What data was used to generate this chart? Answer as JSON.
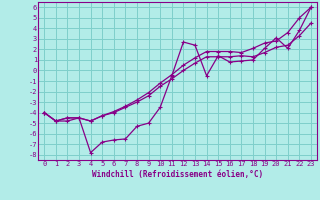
{
  "title": "",
  "xlabel": "Windchill (Refroidissement éolien,°C)",
  "bg_color": "#b2ece8",
  "grid_color": "#7ecfcb",
  "line_color": "#880088",
  "spine_color": "#880088",
  "xlim": [
    -0.5,
    23.5
  ],
  "ylim": [
    -8.5,
    6.5
  ],
  "xticks": [
    0,
    1,
    2,
    3,
    4,
    5,
    6,
    7,
    8,
    9,
    10,
    11,
    12,
    13,
    14,
    15,
    16,
    17,
    18,
    19,
    20,
    21,
    22,
    23
  ],
  "yticks": [
    -8,
    -7,
    -6,
    -5,
    -4,
    -3,
    -2,
    -1,
    0,
    1,
    2,
    3,
    4,
    5,
    6
  ],
  "series1_x": [
    0,
    1,
    2,
    3,
    4,
    5,
    6,
    7,
    8,
    9,
    10,
    11,
    12,
    13,
    14,
    15,
    16,
    17,
    18,
    19,
    20,
    21,
    22,
    23
  ],
  "series1_y": [
    -4.0,
    -4.8,
    -4.8,
    -4.5,
    -7.8,
    -6.8,
    -6.6,
    -6.5,
    -5.3,
    -5.0,
    -3.5,
    -0.5,
    2.7,
    2.4,
    -0.5,
    1.4,
    0.8,
    0.9,
    1.0,
    2.1,
    3.1,
    2.1,
    3.8,
    6.0
  ],
  "series2_x": [
    0,
    1,
    2,
    3,
    4,
    5,
    6,
    7,
    8,
    9,
    10,
    11,
    12,
    13,
    14,
    15,
    16,
    17,
    18,
    19,
    20,
    21,
    22,
    23
  ],
  "series2_y": [
    -4.0,
    -4.8,
    -4.5,
    -4.5,
    -4.8,
    -4.3,
    -4.0,
    -3.5,
    -3.0,
    -2.4,
    -1.5,
    -0.8,
    0.0,
    0.7,
    1.3,
    1.3,
    1.3,
    1.4,
    1.3,
    1.7,
    2.2,
    2.4,
    3.3,
    4.5
  ],
  "series3_x": [
    0,
    1,
    2,
    3,
    4,
    5,
    6,
    7,
    8,
    9,
    10,
    11,
    12,
    13,
    14,
    15,
    16,
    17,
    18,
    19,
    20,
    21,
    22,
    23
  ],
  "series3_y": [
    -4.0,
    -4.8,
    -4.5,
    -4.5,
    -4.8,
    -4.3,
    -3.9,
    -3.4,
    -2.8,
    -2.1,
    -1.2,
    -0.4,
    0.5,
    1.2,
    1.8,
    1.8,
    1.8,
    1.7,
    2.1,
    2.6,
    2.8,
    3.6,
    5.0,
    6.0
  ],
  "tick_fontsize": 5,
  "xlabel_fontsize": 5.5,
  "marker_size": 3,
  "line_width": 0.9
}
